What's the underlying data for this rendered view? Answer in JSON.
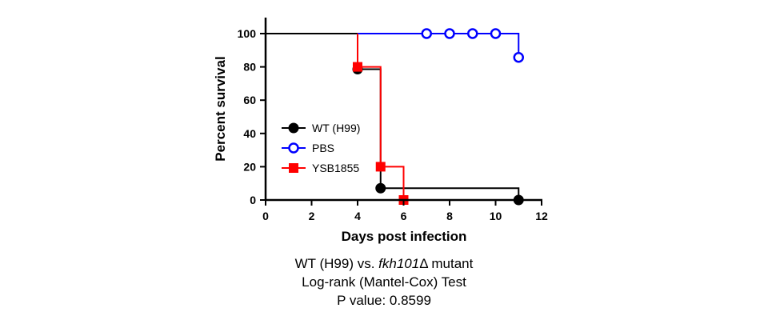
{
  "chart_data": {
    "type": "line",
    "step": true,
    "xlabel": "Days post infection",
    "ylabel": "Percent survival",
    "xlim": [
      0,
      12
    ],
    "ylim": [
      0,
      100
    ],
    "xticks": [
      "0",
      "2",
      "4",
      "6",
      "8",
      "10",
      "12"
    ],
    "yticks": [
      "0",
      "20",
      "40",
      "60",
      "80",
      "100"
    ],
    "legend_position": "center-left",
    "series": [
      {
        "name": "WT (H99)",
        "color": "#000000",
        "marker": "filled-circle",
        "steps": [
          [
            0,
            100
          ],
          [
            4,
            100
          ],
          [
            4,
            78.6
          ],
          [
            5,
            78.6
          ],
          [
            5,
            7.1
          ],
          [
            11,
            7.1
          ],
          [
            11,
            0
          ]
        ],
        "markers": [
          [
            4,
            78.6
          ],
          [
            5,
            7.1
          ],
          [
            11,
            0
          ]
        ]
      },
      {
        "name": "PBS",
        "color": "#0000ff",
        "marker": "open-circle",
        "steps": [
          [
            4,
            100
          ],
          [
            11,
            100
          ],
          [
            11,
            85.7
          ]
        ],
        "markers": [
          [
            7,
            100
          ],
          [
            8,
            100
          ],
          [
            9,
            100
          ],
          [
            10,
            100
          ],
          [
            11,
            85.7
          ]
        ]
      },
      {
        "name": "YSB1855",
        "color": "#ff0000",
        "marker": "filled-square",
        "steps": [
          [
            4,
            100
          ],
          [
            4,
            80
          ],
          [
            5,
            80
          ],
          [
            5,
            20
          ],
          [
            6,
            20
          ],
          [
            6,
            0
          ]
        ],
        "markers": [
          [
            4,
            80
          ],
          [
            5,
            20
          ],
          [
            6,
            0
          ]
        ]
      }
    ]
  },
  "caption": {
    "line1_prefix": "WT (H99) vs. ",
    "line1_gene": "fkh101",
    "line1_suffix": "Δ mutant",
    "line2": "Log-rank (Mantel-Cox) Test",
    "line3": "P value: 0.8599"
  }
}
